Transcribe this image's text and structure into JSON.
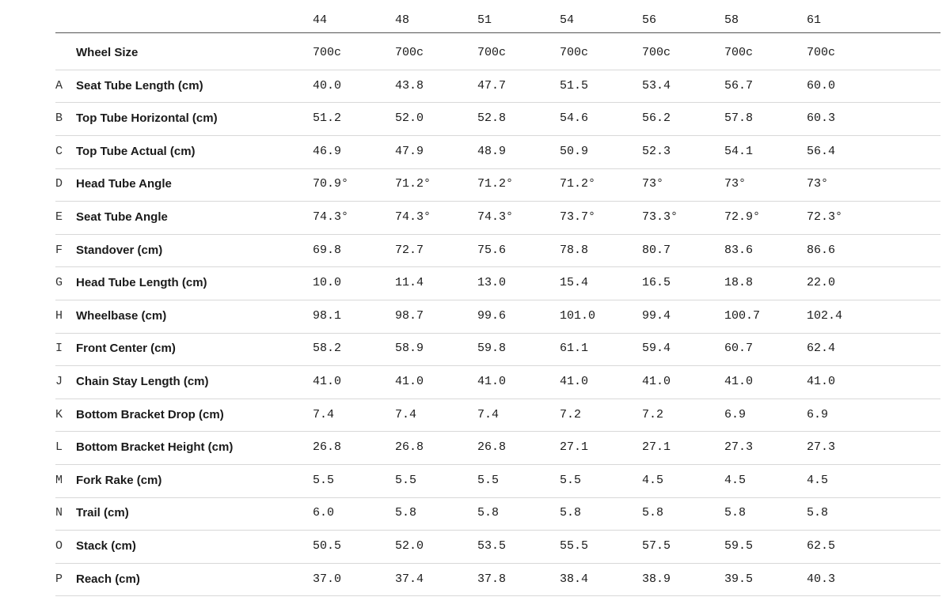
{
  "table": {
    "sizes": [
      "44",
      "48",
      "51",
      "54",
      "56",
      "58",
      "61"
    ],
    "rows": [
      {
        "label": "Wheel Size",
        "values": [
          "700c",
          "700c",
          "700c",
          "700c",
          "700c",
          "700c",
          "700c"
        ]
      },
      {
        "letter": "A",
        "label": "Seat Tube Length (cm)",
        "values": [
          "40.0",
          "43.8",
          "47.7",
          "51.5",
          "53.4",
          "56.7",
          "60.0"
        ]
      },
      {
        "letter": "B",
        "label": "Top Tube Horizontal (cm)",
        "values": [
          "51.2",
          "52.0",
          "52.8",
          "54.6",
          "56.2",
          "57.8",
          "60.3"
        ]
      },
      {
        "letter": "C",
        "label": "Top Tube Actual (cm)",
        "values": [
          "46.9",
          "47.9",
          "48.9",
          "50.9",
          "52.3",
          "54.1",
          "56.4"
        ]
      },
      {
        "letter": "D",
        "label": "Head Tube Angle",
        "values": [
          "70.9°",
          "71.2°",
          "71.2°",
          "71.2°",
          "73°",
          "73°",
          "73°"
        ]
      },
      {
        "letter": "E",
        "label": "Seat Tube Angle",
        "values": [
          "74.3°",
          "74.3°",
          "74.3°",
          "73.7°",
          "73.3°",
          "72.9°",
          "72.3°"
        ]
      },
      {
        "letter": "F",
        "label": "Standover (cm)",
        "values": [
          "69.8",
          "72.7",
          "75.6",
          "78.8",
          "80.7",
          "83.6",
          "86.6"
        ]
      },
      {
        "letter": "G",
        "label": "Head Tube Length (cm)",
        "values": [
          "10.0",
          "11.4",
          "13.0",
          "15.4",
          "16.5",
          "18.8",
          "22.0"
        ]
      },
      {
        "letter": "H",
        "label": "Wheelbase (cm)",
        "values": [
          "98.1",
          "98.7",
          "99.6",
          "101.0",
          "99.4",
          "100.7",
          "102.4"
        ]
      },
      {
        "letter": "I",
        "label": "Front Center (cm)",
        "values": [
          "58.2",
          "58.9",
          "59.8",
          "61.1",
          "59.4",
          "60.7",
          "62.4"
        ]
      },
      {
        "letter": "J",
        "label": "Chain Stay Length (cm)",
        "values": [
          "41.0",
          "41.0",
          "41.0",
          "41.0",
          "41.0",
          "41.0",
          "41.0"
        ]
      },
      {
        "letter": "K",
        "label": "Bottom Bracket Drop (cm)",
        "values": [
          "7.4",
          "7.4",
          "7.4",
          "7.2",
          "7.2",
          "6.9",
          "6.9"
        ]
      },
      {
        "letter": "L",
        "label": "Bottom Bracket Height (cm)",
        "values": [
          "26.8",
          "26.8",
          "26.8",
          "27.1",
          "27.1",
          "27.3",
          "27.3"
        ]
      },
      {
        "letter": "M",
        "label": "Fork Rake (cm)",
        "values": [
          "5.5",
          "5.5",
          "5.5",
          "5.5",
          "4.5",
          "4.5",
          "4.5"
        ]
      },
      {
        "letter": "N",
        "label": "Trail (cm)",
        "values": [
          "6.0",
          "5.8",
          "5.8",
          "5.8",
          "5.8",
          "5.8",
          "5.8"
        ]
      },
      {
        "letter": "O",
        "label": "Stack (cm)",
        "values": [
          "50.5",
          "52.0",
          "53.5",
          "55.5",
          "57.5",
          "59.5",
          "62.5"
        ]
      },
      {
        "letter": "P",
        "label": "Reach (cm)",
        "values": [
          "37.0",
          "37.4",
          "37.8",
          "38.4",
          "38.9",
          "39.5",
          "40.3"
        ]
      }
    ]
  }
}
